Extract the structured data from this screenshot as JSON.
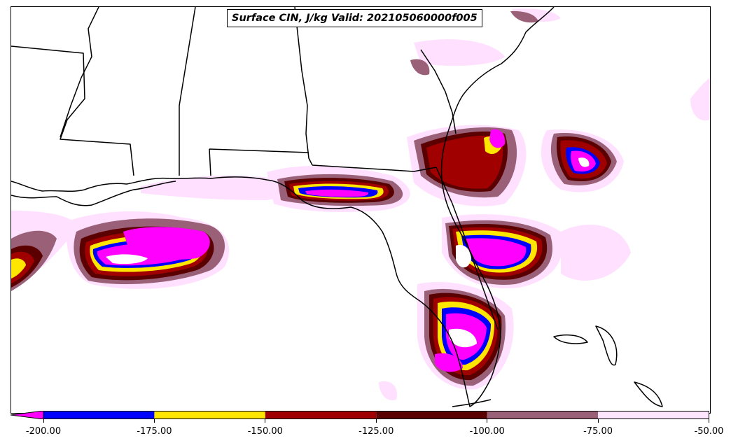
{
  "title": "Surface CIN, J/kg Valid: 202105060000f005",
  "colorbar": {
    "segments": [
      {
        "from": -200,
        "to": -175,
        "color": "#0000ff"
      },
      {
        "from": -175,
        "to": -150,
        "color": "#ffe600"
      },
      {
        "from": -150,
        "to": -125,
        "color": "#a00000"
      },
      {
        "from": -125,
        "to": -100,
        "color": "#5a0000"
      },
      {
        "from": -100,
        "to": -75,
        "color": "#9a6078"
      },
      {
        "from": -75,
        "to": -50,
        "color": "#ffe6ff"
      }
    ],
    "extend_min_color": "#ff00ff",
    "ticks": [
      "-200.00",
      "-175.00",
      "-150.00",
      "-125.00",
      "-100.00",
      "-75.00",
      "-50.00"
    ]
  },
  "map": {
    "region": "Southeastern United States and Gulf of Mexico",
    "colors": {
      "coast": "#000000",
      "pink": "#ffe0ff",
      "mauve": "#9a6078",
      "maroon": "#5a0000",
      "red": "#a00000",
      "yellow": "#ffe600",
      "blue": "#0000ff",
      "magenta": "#ff00ff"
    }
  }
}
